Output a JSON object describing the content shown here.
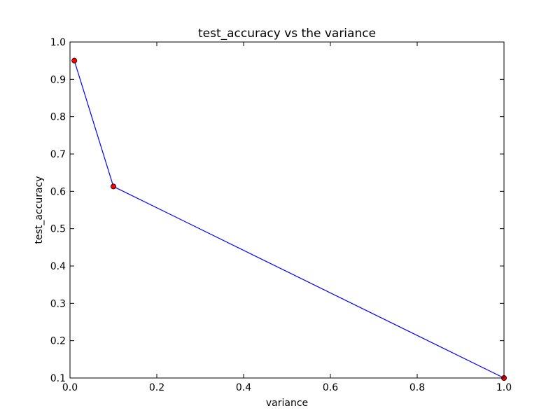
{
  "chart_data": {
    "type": "line",
    "title": "test_accuracy vs the variance",
    "xlabel": "variance",
    "ylabel": "test_accuracy",
    "xlim": [
      0.0,
      1.0
    ],
    "ylim": [
      0.1,
      1.0
    ],
    "xticks": [
      "0.0",
      "0.2",
      "0.4",
      "0.6",
      "0.8",
      "1.0"
    ],
    "yticks": [
      "0.1",
      "0.2",
      "0.3",
      "0.4",
      "0.5",
      "0.6",
      "0.7",
      "0.8",
      "0.9",
      "1.0"
    ],
    "grid": false,
    "series": [
      {
        "x": [
          0.01,
          0.1,
          1.0
        ],
        "y": [
          0.95,
          0.613,
          0.1
        ],
        "line_color": "#0000ff",
        "marker_color": "#ff0000"
      }
    ]
  }
}
